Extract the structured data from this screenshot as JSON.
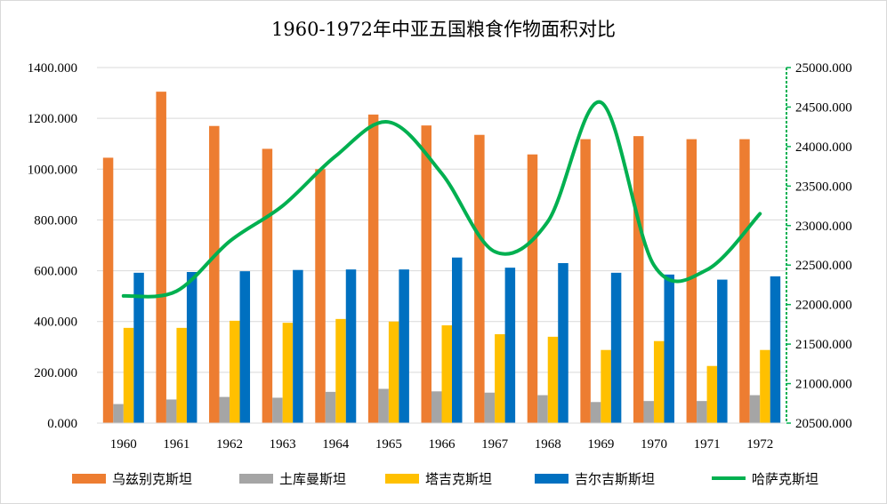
{
  "chart_data": {
    "type": "bar",
    "title": "1960-1972年中亚五国粮食作物面积对比",
    "categories": [
      "1960",
      "1961",
      "1962",
      "1963",
      "1964",
      "1965",
      "1966",
      "1967",
      "1968",
      "1969",
      "1970",
      "1971",
      "1972"
    ],
    "left_axis": {
      "ylim": [
        0,
        1400
      ],
      "ticks": [
        "0.000",
        "200.000",
        "400.000",
        "600.000",
        "800.000",
        "1000.000",
        "1200.000",
        "1400.000"
      ]
    },
    "right_axis": {
      "ylim": [
        20500,
        25000
      ],
      "ticks": [
        "20500.000",
        "21000.000",
        "21500.000",
        "22000.000",
        "22500.000",
        "23000.000",
        "23500.000",
        "24000.000",
        "24500.000",
        "25000.000"
      ],
      "color": "#00b050"
    },
    "grid": true,
    "legend_position": "bottom",
    "series": [
      {
        "name": "乌兹别克斯坦",
        "type": "bar",
        "axis": "left",
        "color": "#ed7d31",
        "values": [
          1045,
          1305,
          1170,
          1080,
          1000,
          1215,
          1172,
          1135,
          1058,
          1118,
          1130,
          1118,
          1118
        ]
      },
      {
        "name": "土库曼斯坦",
        "type": "bar",
        "axis": "left",
        "color": "#a5a5a5",
        "values": [
          75,
          93,
          103,
          100,
          123,
          135,
          125,
          120,
          110,
          83,
          87,
          87,
          110
        ]
      },
      {
        "name": "塔吉克斯坦",
        "type": "bar",
        "axis": "left",
        "color": "#ffc000",
        "values": [
          375,
          375,
          403,
          395,
          410,
          400,
          385,
          350,
          340,
          288,
          323,
          225,
          288
        ]
      },
      {
        "name": "吉尔吉斯斯坦",
        "type": "bar",
        "axis": "left",
        "color": "#0070c0",
        "values": [
          592,
          595,
          598,
          603,
          605,
          605,
          652,
          612,
          630,
          592,
          585,
          565,
          578
        ]
      },
      {
        "name": "哈萨克斯坦",
        "type": "line",
        "axis": "right",
        "color": "#00b050",
        "smooth": true,
        "values": [
          22110,
          22170,
          22800,
          23250,
          23880,
          24310,
          23660,
          22670,
          23050,
          24560,
          22500,
          22440,
          23150
        ]
      }
    ]
  }
}
